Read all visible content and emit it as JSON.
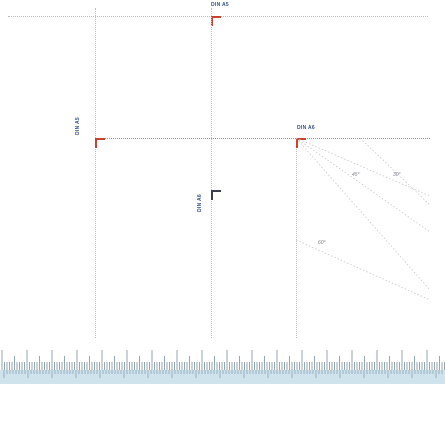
{
  "labels": {
    "din_a5_top": "DIN A5",
    "din_a5_left": "DIN A5",
    "din_a6_mid": "DIN A6",
    "din_a6_left": "DIN A6"
  },
  "angles": {
    "a30": "30°",
    "a45": "45°",
    "a60": "60°"
  },
  "colors": {
    "accent": "#c8432f",
    "label": "#2d4f86",
    "ruler": "#cfe3ec"
  }
}
